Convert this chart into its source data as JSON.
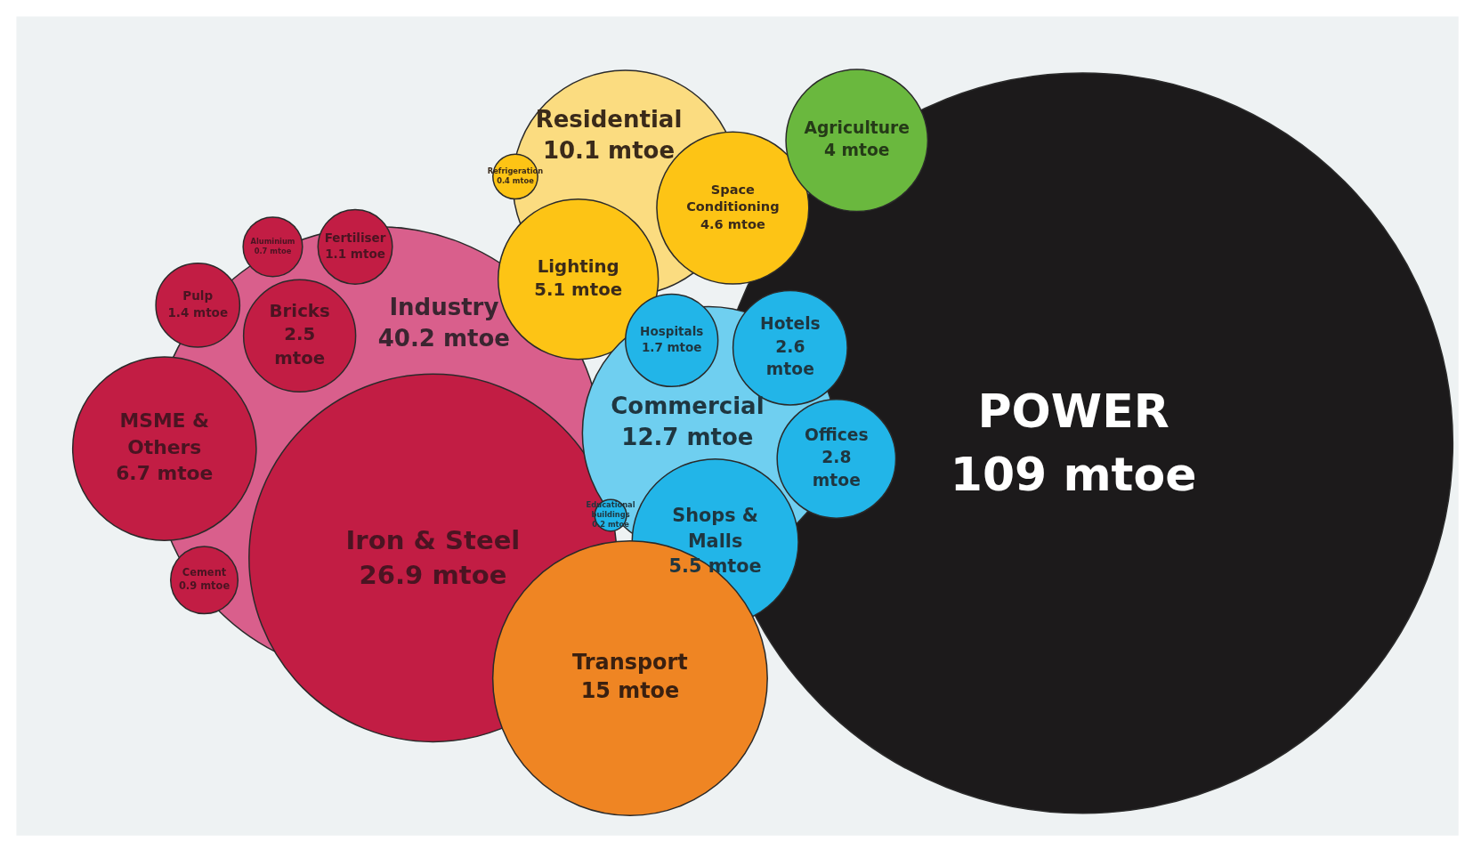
{
  "chart_data": {
    "type": "other",
    "categories": [
      "POWER",
      "Industry",
      "Iron & Steel",
      "MSME & Others",
      "Bricks",
      "Pulp",
      "Aluminium",
      "Fertiliser",
      "Cement",
      "Residential",
      "Refrigeration",
      "Lighting",
      "Space Conditioning",
      "Agriculture",
      "Commercial",
      "Hospitals",
      "Hotels",
      "Offices",
      "Shops & Malls",
      "Educational buildings",
      "Transport"
    ],
    "values": [
      109,
      40.2,
      26.9,
      6.7,
      2.5,
      1.4,
      0.7,
      1.1,
      0.9,
      10.1,
      0.4,
      5.1,
      4.6,
      4,
      12.7,
      1.7,
      2.6,
      2.8,
      5.5,
      0.2,
      15
    ],
    "value_labels": [
      "109 mtoe",
      "40.2 mtoe",
      "26.9 mtoe",
      "6.7 mtoe",
      "2.5 mtoe",
      "1.4 mtoe",
      "0.7 mtoe",
      "1.1 mtoe",
      "0.9 mtoe",
      "10.1 mtoe",
      "0.4 mtoe",
      "5.1 mtoe",
      "4.6 mtoe",
      "4 mtoe",
      "12.7 mtoe",
      "1.7 mtoe",
      "2.6 mtoe",
      "2.8 mtoe",
      "5.5 mtoe",
      "0.2 mtoe",
      "15 mtoe"
    ],
    "colors": [
      "#1c1a1b",
      "#d95f8c",
      "#c21d44",
      "#c21d44",
      "#c21d44",
      "#c21d44",
      "#c21d44",
      "#c21d44",
      "#c21d44",
      "#fbdc80",
      "#fdc415",
      "#fdc415",
      "#fdc415",
      "#6ab83e",
      "#6fcff0",
      "#22b5e8",
      "#22b5e8",
      "#22b5e8",
      "#22b5e8",
      "#22b5e8",
      "#ef8523"
    ]
  }
}
